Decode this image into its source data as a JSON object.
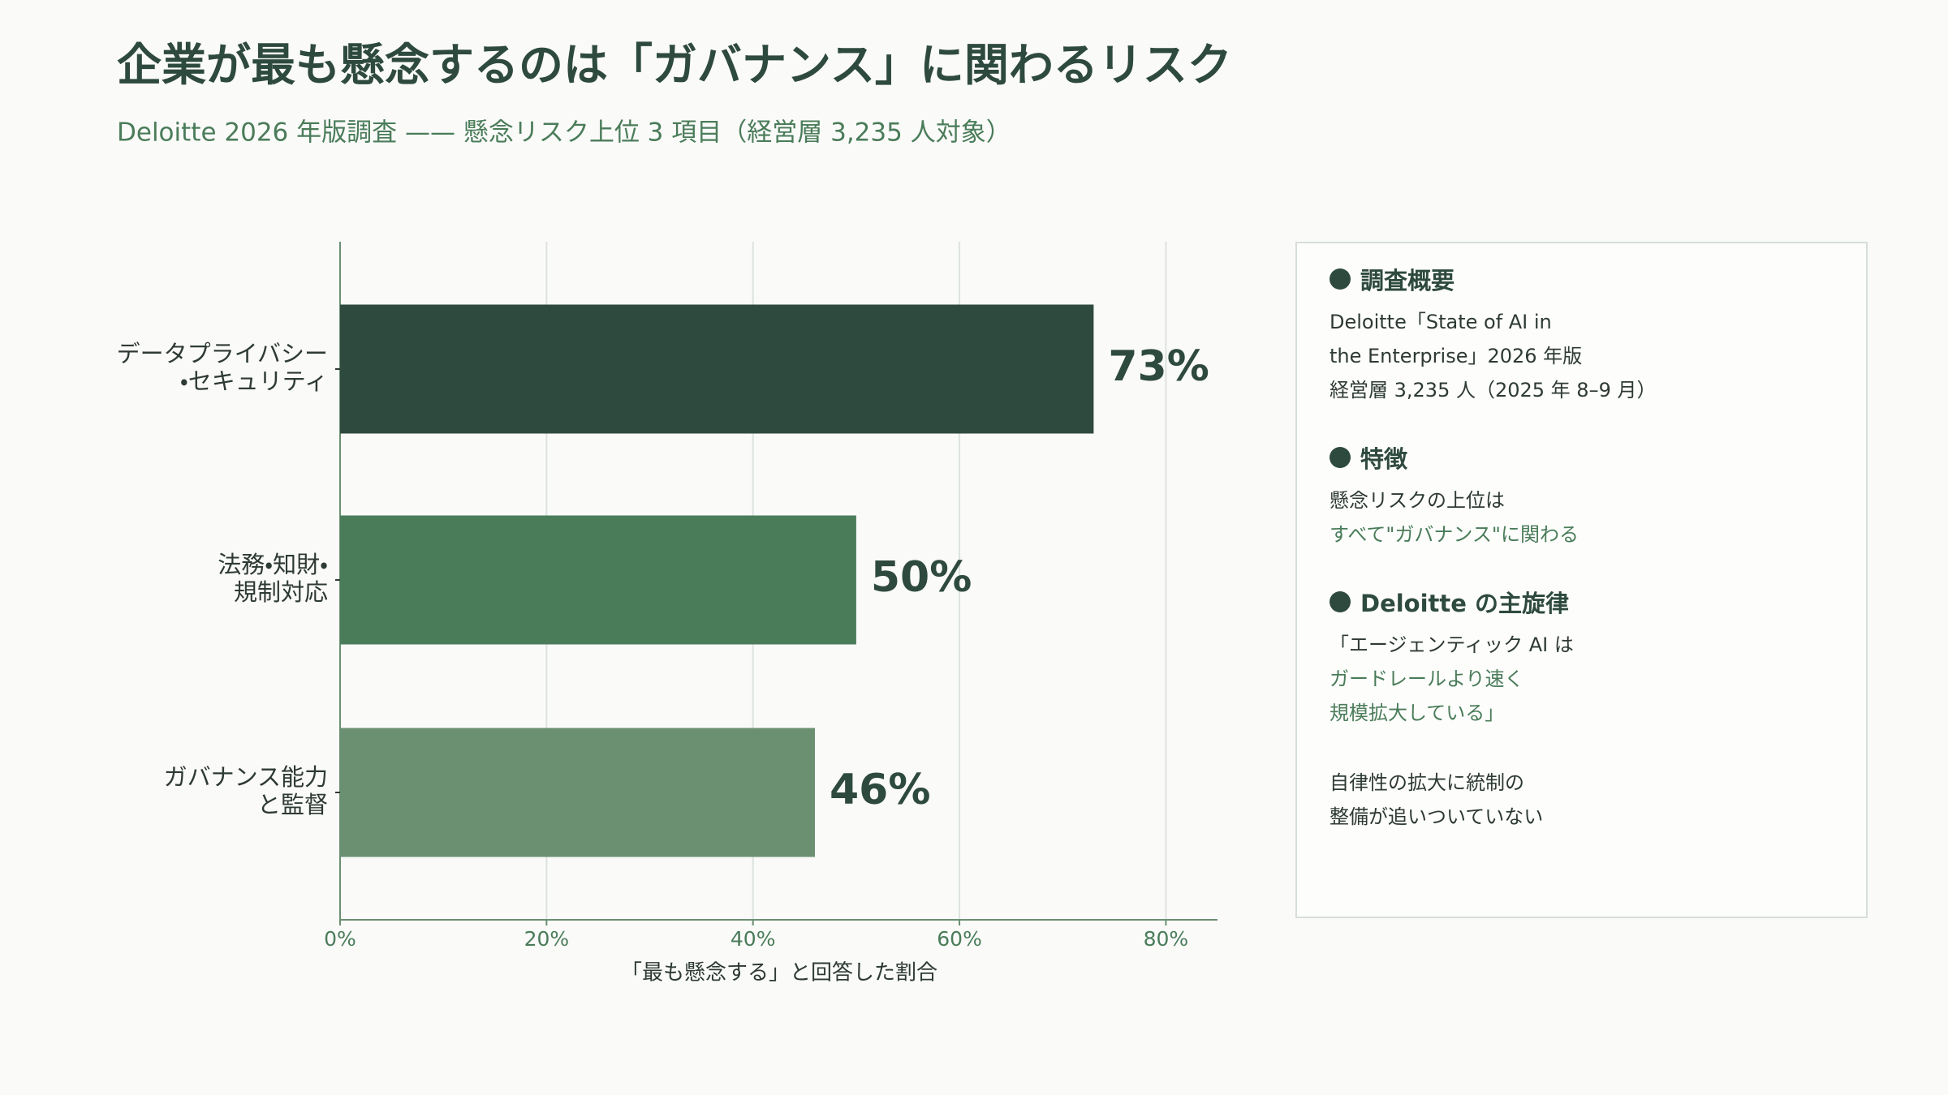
{
  "chart_data": {
    "type": "barh",
    "title": "企業が最も懸念するのは「ガバナンス」に関わるリスク",
    "subtitle": "Deloitte 2026 年版調査 —— 懸念リスク上位 3 項目（経営層 3,235 人対象）",
    "x_label": "「最も懸念する」と回答した割合",
    "categories": [
      [
        "データプライバシー",
        "・セキュリティ"
      ],
      [
        "法務・知財・",
        "規制対応"
      ],
      [
        "ガバナンス能力",
        "と監督"
      ]
    ],
    "values": [
      73,
      50,
      46
    ],
    "value_labels": [
      "73%",
      "50%",
      "46%"
    ],
    "colors": [
      "#2e4a3e",
      "#4a7c59",
      "#6b8f71"
    ],
    "xlim": [
      0,
      85
    ],
    "xticks": [
      {
        "value": 0,
        "label": "0%"
      },
      {
        "value": 20,
        "label": "20%"
      },
      {
        "value": 40,
        "label": "40%"
      },
      {
        "value": 60,
        "label": "60%"
      },
      {
        "value": 80,
        "label": "80%"
      }
    ],
    "grid": true
  },
  "panel": {
    "sections": [
      {
        "heading": "調査概要",
        "paragraphs": [
          [
            {
              "text": "Deloitte「State of AI in",
              "accent": false
            },
            {
              "text": "the Enterprise」2026 年版",
              "accent": false
            },
            {
              "text": "経営層 3,235 人（2025 年 8–9 月）",
              "accent": false
            }
          ]
        ]
      },
      {
        "heading": "特徴",
        "paragraphs": [
          [
            {
              "text": "懸念リスクの上位は",
              "accent": false
            },
            {
              "text": "すべて\"ガバナンス\"に関わる",
              "accent": true
            }
          ]
        ]
      },
      {
        "heading": "Deloitte の主旋律",
        "paragraphs": [
          [
            {
              "text": "「エージェンティック AI は",
              "accent": false
            },
            {
              "text": "ガードレールより速く",
              "accent": true
            },
            {
              "text": "規模拡大している」",
              "accent": true
            }
          ],
          [
            {
              "text": "自律性の拡大に統制の",
              "accent": false
            },
            {
              "text": "整備が追いついていない",
              "accent": false
            }
          ]
        ]
      }
    ]
  }
}
